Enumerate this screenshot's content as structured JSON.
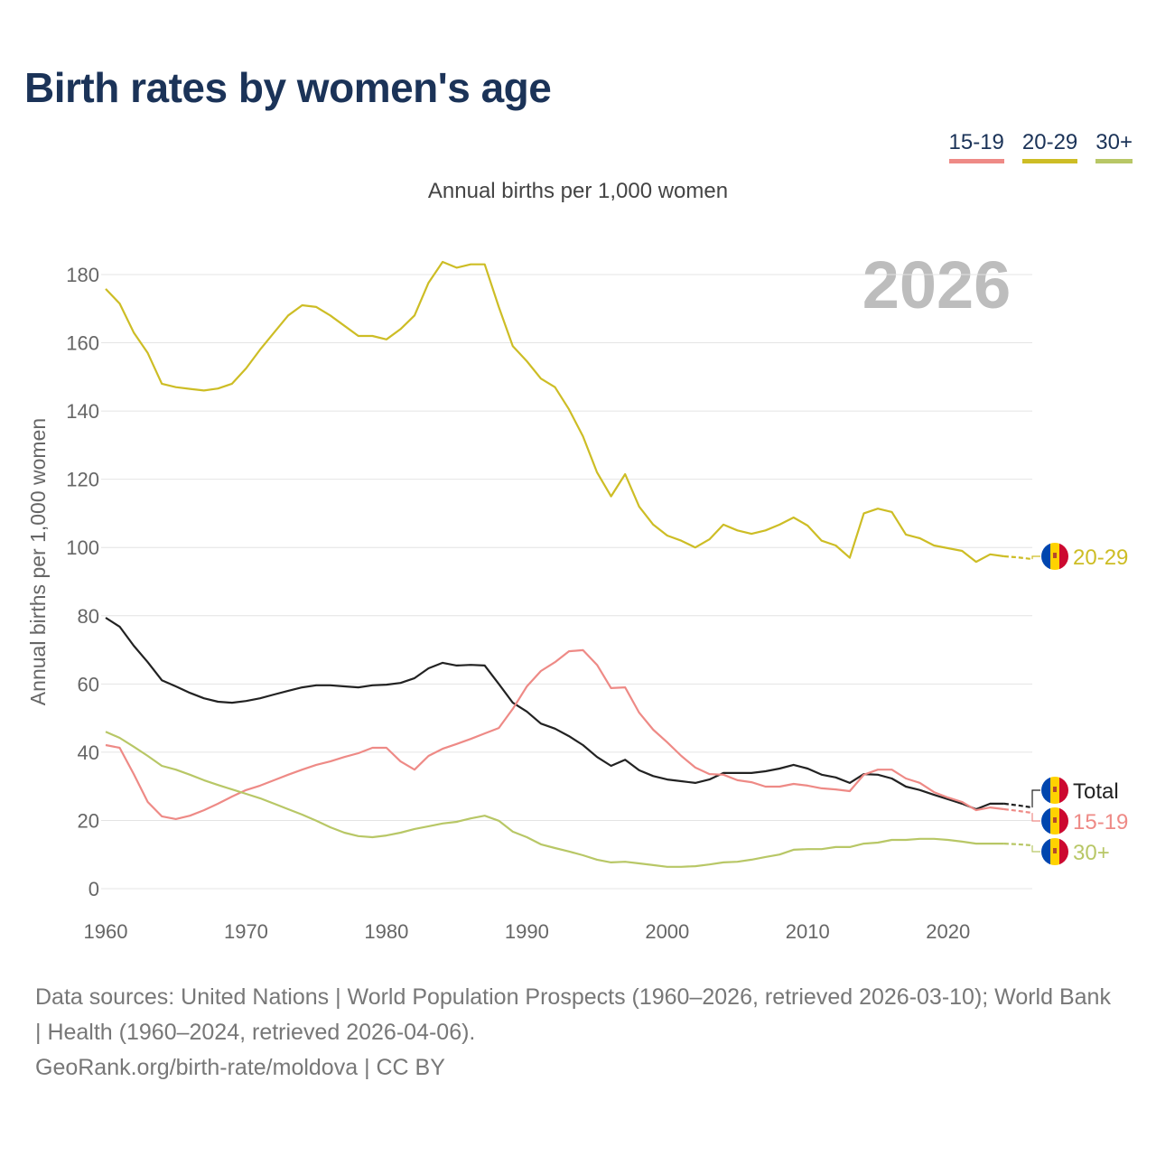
{
  "title": "Birth rates by women's age",
  "subtitle": "Annual births per 1,000 women",
  "year_watermark": "2026",
  "legend": [
    {
      "label": "15-19",
      "color": "#ee8a86"
    },
    {
      "label": "20-29",
      "color": "#cdbd25"
    },
    {
      "label": "30+",
      "color": "#b8c766"
    }
  ],
  "footer": {
    "sources": "Data sources: United Nations | World Population Prospects (1960–2026, retrieved 2026-03-10); World Bank | Health (1960–2024, retrieved 2026-04-06).",
    "credit": "GeoRank.org/birth-rate/moldova | CC BY"
  },
  "chart_data": {
    "type": "line",
    "title": "Birth rates by women's age",
    "xlabel": "",
    "ylabel": "Annual births per 1,000 women",
    "xlim": [
      1960,
      2026
    ],
    "ylim": [
      0,
      180
    ],
    "xticks": [
      1960,
      1970,
      1980,
      1990,
      2000,
      2010,
      2020
    ],
    "yticks": [
      0,
      20,
      40,
      60,
      80,
      100,
      120,
      140,
      160,
      180
    ],
    "projection_start": 2024,
    "x_start": 1960,
    "series": [
      {
        "name": "20-29",
        "color": "#cdbd25",
        "values": [
          175.8,
          171.5,
          163,
          157,
          148,
          147,
          146.5,
          146,
          146.6,
          148,
          152.5,
          158,
          163,
          168,
          171,
          170.5,
          168,
          165,
          162,
          162,
          161,
          164,
          168,
          177.6,
          183.7,
          182,
          183,
          183,
          170.5,
          159,
          154.6,
          149.5,
          147,
          140.5,
          132.6,
          122,
          115,
          121.5,
          112,
          106.7,
          103.5,
          102,
          100,
          102.4,
          106.7,
          105,
          104,
          105,
          106.7,
          108.8,
          106.4,
          102,
          100.6,
          97,
          110,
          111.4,
          110.4,
          103.8,
          102.7,
          100.6,
          99.8,
          99,
          95.8,
          98,
          97.4,
          97.1,
          96.6
        ]
      },
      {
        "name": "Total",
        "color": "#222222",
        "values": [
          79.4,
          76.8,
          71.2,
          66.4,
          61.1,
          59.3,
          57.4,
          55.8,
          54.8,
          54.5,
          55,
          55.8,
          56.9,
          58,
          59,
          59.6,
          59.6,
          59.3,
          59,
          59.6,
          59.8,
          60.3,
          61.7,
          64.6,
          66.2,
          65.4,
          65.6,
          65.4,
          60,
          54.5,
          51.9,
          48.4,
          46.9,
          44.7,
          42.1,
          38.6,
          36,
          37.8,
          34.7,
          33,
          32,
          31.5,
          31,
          32,
          33.9,
          33.9,
          33.9,
          34.4,
          35.2,
          36.3,
          35.2,
          33.4,
          32.6,
          31,
          33.6,
          33.4,
          32.3,
          29.9,
          28.9,
          27.5,
          26.2,
          24.9,
          23.3,
          24.9,
          24.9,
          24.4,
          23.8
        ]
      },
      {
        "name": "15-19",
        "color": "#ee8a86",
        "values": [
          42.1,
          41.3,
          33.6,
          25.4,
          21.2,
          20.4,
          21.4,
          23,
          24.9,
          27,
          28.9,
          30.2,
          31.8,
          33.4,
          34.9,
          36.3,
          37.3,
          38.6,
          39.7,
          41.3,
          41.3,
          37.3,
          34.9,
          38.9,
          41,
          42.4,
          43.9,
          45.5,
          47.1,
          52.7,
          59.3,
          63.8,
          66.4,
          69.6,
          69.9,
          65.6,
          58.8,
          59,
          51.6,
          46.6,
          42.9,
          38.9,
          35.5,
          33.6,
          33.4,
          31.8,
          31.2,
          29.9,
          29.9,
          30.7,
          30.2,
          29.4,
          29.1,
          28.6,
          33.4,
          34.9,
          34.9,
          32.3,
          31,
          28.3,
          26.7,
          25.4,
          23,
          23.8,
          23.3,
          22.8,
          22.2
        ]
      },
      {
        "name": "30+",
        "color": "#b8c766",
        "values": [
          46,
          44.2,
          41.6,
          38.9,
          36,
          34.9,
          33.4,
          31.8,
          30.4,
          29.1,
          27.8,
          26.5,
          24.9,
          23.3,
          21.7,
          19.9,
          18,
          16.4,
          15.4,
          15.1,
          15.6,
          16.4,
          17.5,
          18.3,
          19.1,
          19.6,
          20.6,
          21.4,
          19.9,
          16.7,
          15.1,
          13,
          11.9,
          10.9,
          9.8,
          8.5,
          7.7,
          7.9,
          7.4,
          6.9,
          6.4,
          6.4,
          6.6,
          7.1,
          7.7,
          7.9,
          8.5,
          9.3,
          10,
          11.4,
          11.6,
          11.6,
          12.2,
          12.2,
          13.2,
          13.5,
          14.3,
          14.3,
          14.6,
          14.6,
          14.3,
          13.8,
          13.2,
          13.2,
          13.2,
          13,
          12.7
        ]
      }
    ],
    "end_labels": [
      {
        "series": "20-29",
        "label": "20-29",
        "color": "#cdbd25"
      },
      {
        "series": "Total",
        "label": "Total",
        "color": "#222222"
      },
      {
        "series": "15-19",
        "label": "15-19",
        "color": "#ee8a86"
      },
      {
        "series": "30+",
        "label": "30+",
        "color": "#b8c766"
      }
    ],
    "grid": true,
    "legend_position": "top-right"
  }
}
